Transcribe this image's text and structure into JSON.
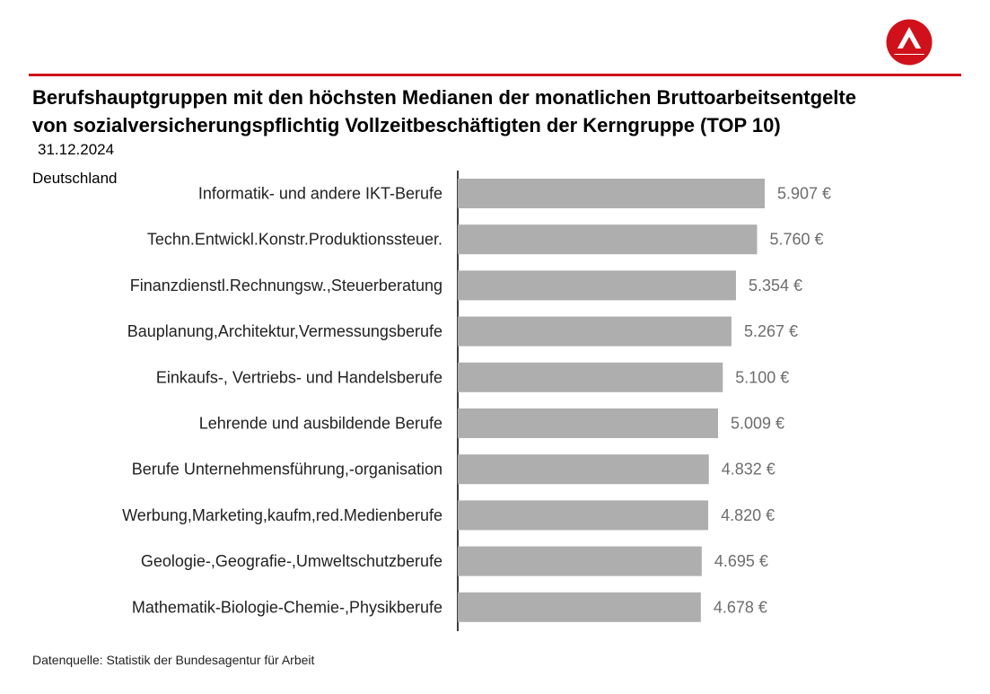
{
  "header": {
    "title_line1": "Berufshauptgruppen mit den höchsten Medianen der monatlichen Bruttoarbeitsentgelte",
    "title_line2": "von sozialversicherungspflichtig Vollzeitbeschäftigten der Kerngruppe (TOP 10)",
    "date": "31.12.2024",
    "region": "Deutschland"
  },
  "logo": {
    "icon": "agency-logo-icon",
    "color": "#d0111b"
  },
  "colors": {
    "accent_line": "#d0111b",
    "bar": "#aeaeae",
    "value_text": "#6d6d6d"
  },
  "chart_data": {
    "type": "bar",
    "orientation": "horizontal",
    "categories": [
      "Informatik- und andere IKT-Berufe",
      "Techn.Entwickl.Konstr.Produktionssteuer.",
      "Finanzdienstl.Rechnungsw.,Steuerberatung",
      "Bauplanung,Architektur,Vermessungsberufe",
      "Einkaufs-, Vertriebs- und Handelsberufe",
      "Lehrende und ausbildende Berufe",
      "Berufe Unternehmensführung,-organisation",
      "Werbung,Marketing,kaufm,red.Medienberufe",
      "Geologie-,Geografie-,Umweltschutzberufe",
      "Mathematik-Biologie-Chemie-,Physikberufe"
    ],
    "values": [
      5907,
      5760,
      5354,
      5267,
      5100,
      5009,
      4832,
      4820,
      4695,
      4678
    ],
    "value_labels": [
      "5.907 €",
      "5.760 €",
      "5.354 €",
      "5.267 €",
      "5.100 €",
      "5.009 €",
      "4.832 €",
      "4.820 €",
      "4.695 €",
      "4.678 €"
    ],
    "xlim": [
      0,
      7000
    ],
    "grid": false,
    "legend": "none"
  },
  "footer": {
    "source": "Datenquelle: Statistik der Bundesagentur für Arbeit"
  }
}
